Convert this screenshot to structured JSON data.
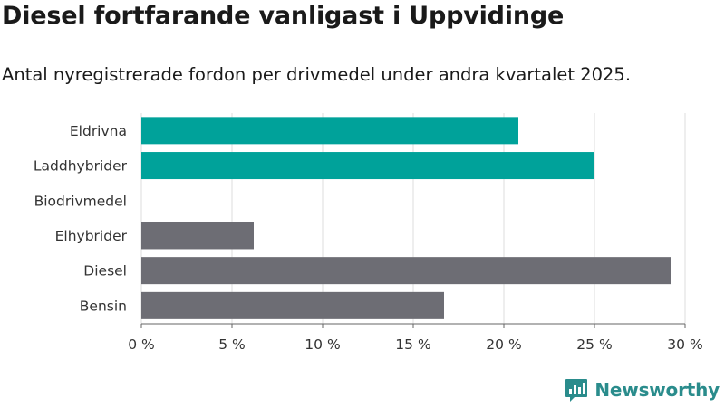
{
  "title": "Diesel fortfarande vanligast i Uppvidinge",
  "subtitle": "Antal nyregistrerade fordon per drivmedel under andra kvartalet 2025.",
  "brand": "Newsworthy",
  "colors": {
    "highlight": "#00a29a",
    "other": "#6d6d74",
    "grid": "#dedede"
  },
  "chart_data": {
    "type": "bar",
    "orientation": "horizontal",
    "categories": [
      "Eldrivna",
      "Laddhybrider",
      "Biodrivmedel",
      "Elhybrider",
      "Diesel",
      "Bensin"
    ],
    "values": [
      20.8,
      25.0,
      0,
      6.2,
      29.2,
      16.7
    ],
    "bar_colors": [
      "#00a29a",
      "#00a29a",
      "#00a29a",
      "#6d6d74",
      "#6d6d74",
      "#6d6d74"
    ],
    "ticks": [
      "0 %",
      "5 %",
      "10 %",
      "15 %",
      "20 %",
      "25 %",
      "30 %"
    ],
    "tick_values": [
      0,
      5,
      10,
      15,
      20,
      25,
      30
    ],
    "xlim": [
      0,
      30
    ],
    "grid": true,
    "legend": "none"
  }
}
